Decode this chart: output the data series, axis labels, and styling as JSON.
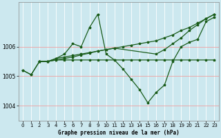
{
  "title": "Graphe pression niveau de la mer (hPa)",
  "bg_color": "#cce8ef",
  "grid_color": "#ffffff",
  "line_color": "#1a5c1a",
  "xlim": [
    -0.5,
    23.5
  ],
  "ylim": [
    1003.5,
    1007.5
  ],
  "yticks": [
    1004,
    1005,
    1006
  ],
  "xticks": [
    0,
    1,
    2,
    3,
    4,
    5,
    6,
    7,
    8,
    9,
    10,
    11,
    12,
    13,
    14,
    15,
    16,
    17,
    18,
    19,
    20,
    21,
    22,
    23
  ],
  "line1_x": [
    0,
    1,
    2,
    3,
    4,
    5,
    6,
    7,
    8,
    9,
    10,
    11,
    12,
    13,
    14,
    15,
    16,
    17,
    18,
    19,
    20,
    21,
    22,
    23
  ],
  "line1_y": [
    1005.2,
    1005.05,
    1005.5,
    1005.5,
    1005.55,
    1005.55,
    1005.55,
    1005.55,
    1005.55,
    1005.55,
    1005.55,
    1005.55,
    1005.55,
    1005.55,
    1005.55,
    1005.55,
    1005.55,
    1005.55,
    1005.55,
    1005.55,
    1005.55,
    1005.55,
    1005.55,
    1005.55
  ],
  "line2_x": [
    2,
    3,
    4,
    5,
    6,
    7,
    8,
    9,
    10,
    11,
    12,
    13,
    14,
    15,
    16,
    17,
    18,
    19,
    20,
    21,
    22,
    23
  ],
  "line2_y": [
    1005.5,
    1005.5,
    1005.55,
    1005.6,
    1005.65,
    1005.72,
    1005.78,
    1005.85,
    1005.9,
    1005.95,
    1006.0,
    1006.05,
    1006.1,
    1006.15,
    1006.2,
    1006.3,
    1006.4,
    1006.55,
    1006.65,
    1006.8,
    1006.95,
    1007.1
  ],
  "line3_x": [
    0,
    1,
    2,
    3,
    4,
    5,
    6,
    7,
    8,
    9,
    10,
    11,
    12,
    13,
    14,
    15,
    16,
    17,
    18,
    19,
    20,
    21,
    22,
    23
  ],
  "line3_y": [
    1005.2,
    1005.05,
    1005.5,
    1005.5,
    1005.6,
    1005.75,
    1006.1,
    1006.0,
    1006.65,
    1007.1,
    1005.75,
    1005.55,
    1005.25,
    1004.9,
    1004.55,
    1004.1,
    1004.45,
    1004.7,
    1005.5,
    1006.0,
    1006.15,
    1006.25,
    1006.85,
    1007.0
  ],
  "line4_x": [
    2,
    3,
    4,
    5,
    6,
    7,
    8,
    9,
    10,
    11,
    16,
    17,
    18,
    19,
    20,
    21,
    22,
    23
  ],
  "line4_y": [
    1005.5,
    1005.5,
    1005.6,
    1005.65,
    1005.7,
    1005.75,
    1005.8,
    1005.85,
    1005.9,
    1005.95,
    1005.75,
    1005.9,
    1006.1,
    1006.3,
    1006.55,
    1006.75,
    1006.95,
    1007.1
  ]
}
